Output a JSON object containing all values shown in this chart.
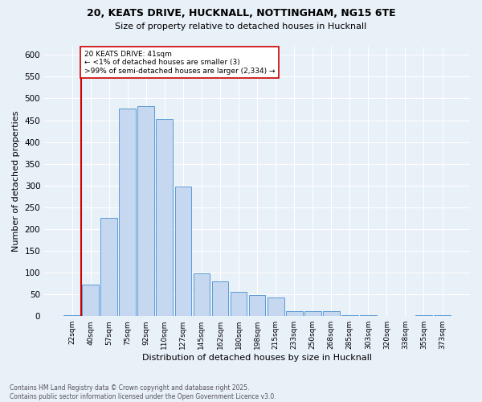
{
  "title1": "20, KEATS DRIVE, HUCKNALL, NOTTINGHAM, NG15 6TE",
  "title2": "Size of property relative to detached houses in Hucknall",
  "xlabel": "Distribution of detached houses by size in Hucknall",
  "ylabel": "Number of detached properties",
  "bar_labels": [
    "22sqm",
    "40sqm",
    "57sqm",
    "75sqm",
    "92sqm",
    "110sqm",
    "127sqm",
    "145sqm",
    "162sqm",
    "180sqm",
    "198sqm",
    "215sqm",
    "233sqm",
    "250sqm",
    "268sqm",
    "285sqm",
    "303sqm",
    "320sqm",
    "338sqm",
    "355sqm",
    "373sqm"
  ],
  "bar_values": [
    3,
    72,
    225,
    477,
    482,
    452,
    297,
    98,
    80,
    55,
    48,
    42,
    12,
    12,
    11,
    3,
    3,
    0,
    0,
    3,
    3
  ],
  "bar_color": "#c5d8f0",
  "bar_edge_color": "#5b9bd5",
  "vline_x": 1,
  "vline_color": "#cc0000",
  "annotation_text": "20 KEATS DRIVE: 41sqm\n← <1% of detached houses are smaller (3)\n>99% of semi-detached houses are larger (2,334) →",
  "annotation_box_color": "#ffffff",
  "annotation_box_edge": "#cc0000",
  "footer_text": "Contains HM Land Registry data © Crown copyright and database right 2025.\nContains public sector information licensed under the Open Government Licence v3.0.",
  "ylim": [
    0,
    620
  ],
  "yticks": [
    0,
    50,
    100,
    150,
    200,
    250,
    300,
    350,
    400,
    450,
    500,
    550,
    600
  ],
  "background_color": "#e8f0f8",
  "grid_color": "#ffffff"
}
